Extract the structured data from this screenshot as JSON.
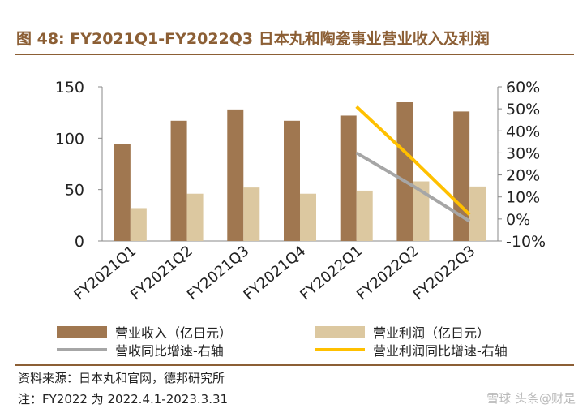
{
  "title": "图 48: FY2021Q1-FY2022Q3 日本丸和陶瓷事业营业收入及利润",
  "source": "资料来源：日本丸和官网，德邦研究所",
  "note": "注：FY2022 为 2022.4.1-2023.3.31",
  "watermark": "雪球 头条@财是",
  "colors": {
    "brand": "#8c5f35",
    "revenue": "#a07750",
    "profit": "#dcc8a0",
    "revenue_growth": "#a6a6a6",
    "profit_growth": "#ffc000"
  },
  "chart_data": {
    "type": "bar",
    "categories": [
      "FY2021Q1",
      "FY2021Q2",
      "FY2021Q3",
      "FY2021Q4",
      "FY2022Q1",
      "FY2022Q2",
      "FY2022Q3"
    ],
    "series": [
      {
        "name": "营业收入（亿日元）",
        "type": "bar",
        "axis": "left",
        "values": [
          94,
          117,
          128,
          117,
          122,
          135,
          126
        ]
      },
      {
        "name": "营业利润（亿日元）",
        "type": "bar",
        "axis": "left",
        "values": [
          32,
          46,
          52,
          46,
          49,
          58,
          53
        ]
      },
      {
        "name": "营收同比增速-右轴",
        "type": "line",
        "axis": "right",
        "values": [
          null,
          null,
          null,
          null,
          30,
          15,
          -1
        ]
      },
      {
        "name": "营业利润同比增速-右轴",
        "type": "line",
        "axis": "right",
        "values": [
          null,
          null,
          null,
          null,
          51,
          27,
          2
        ]
      }
    ],
    "y_left": {
      "min": 0,
      "max": 150,
      "ticks": [
        "0",
        "50",
        "100",
        "150"
      ],
      "tick_values": [
        0,
        50,
        100,
        150
      ]
    },
    "y_right": {
      "min": -10,
      "max": 60,
      "ticks": [
        "-10%",
        "0%",
        "10%",
        "20%",
        "30%",
        "40%",
        "50%",
        "60%"
      ],
      "tick_values": [
        -10,
        0,
        10,
        20,
        30,
        40,
        50,
        60
      ]
    },
    "legend_position": "bottom",
    "grid": false
  }
}
